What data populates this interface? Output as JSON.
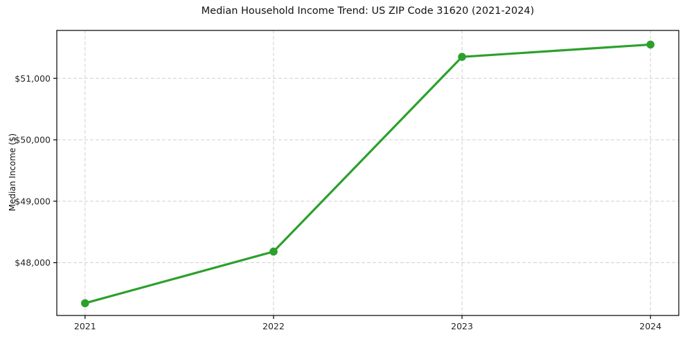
{
  "chart_data": {
    "type": "line",
    "title": "Median Household Income Trend: US ZIP Code 31620 (2021-2024)",
    "xlabel": "",
    "ylabel": "Median Income ($)",
    "x": [
      2021,
      2022,
      2023,
      2024
    ],
    "values": [
      47340,
      48180,
      51350,
      51550
    ],
    "series": [
      {
        "name": "Median Household Income",
        "x": [
          2021,
          2022,
          2023,
          2024
        ],
        "values": [
          47340,
          48180,
          51350,
          51550
        ]
      }
    ],
    "xticks": [
      {
        "value": 2021,
        "label": "2021"
      },
      {
        "value": 2022,
        "label": "2022"
      },
      {
        "value": 2023,
        "label": "2023"
      },
      {
        "value": 2024,
        "label": "2024"
      }
    ],
    "yticks": [
      {
        "value": 48000,
        "label": "$48,000"
      },
      {
        "value": 49000,
        "label": "$49,000"
      },
      {
        "value": 50000,
        "label": "$50,000"
      },
      {
        "value": 51000,
        "label": "$51,000"
      }
    ],
    "xlim": [
      2020.85,
      2024.15
    ],
    "ylim": [
      47140,
      51780
    ],
    "grid": true,
    "grid_style": "dashed",
    "legend_position": "none",
    "colors": {
      "line": "#2ca02c",
      "marker": "#2ca02c",
      "grid": "#cfcfcf",
      "spine": "#000000",
      "tick_text": "#262626",
      "background": "#ffffff"
    }
  }
}
